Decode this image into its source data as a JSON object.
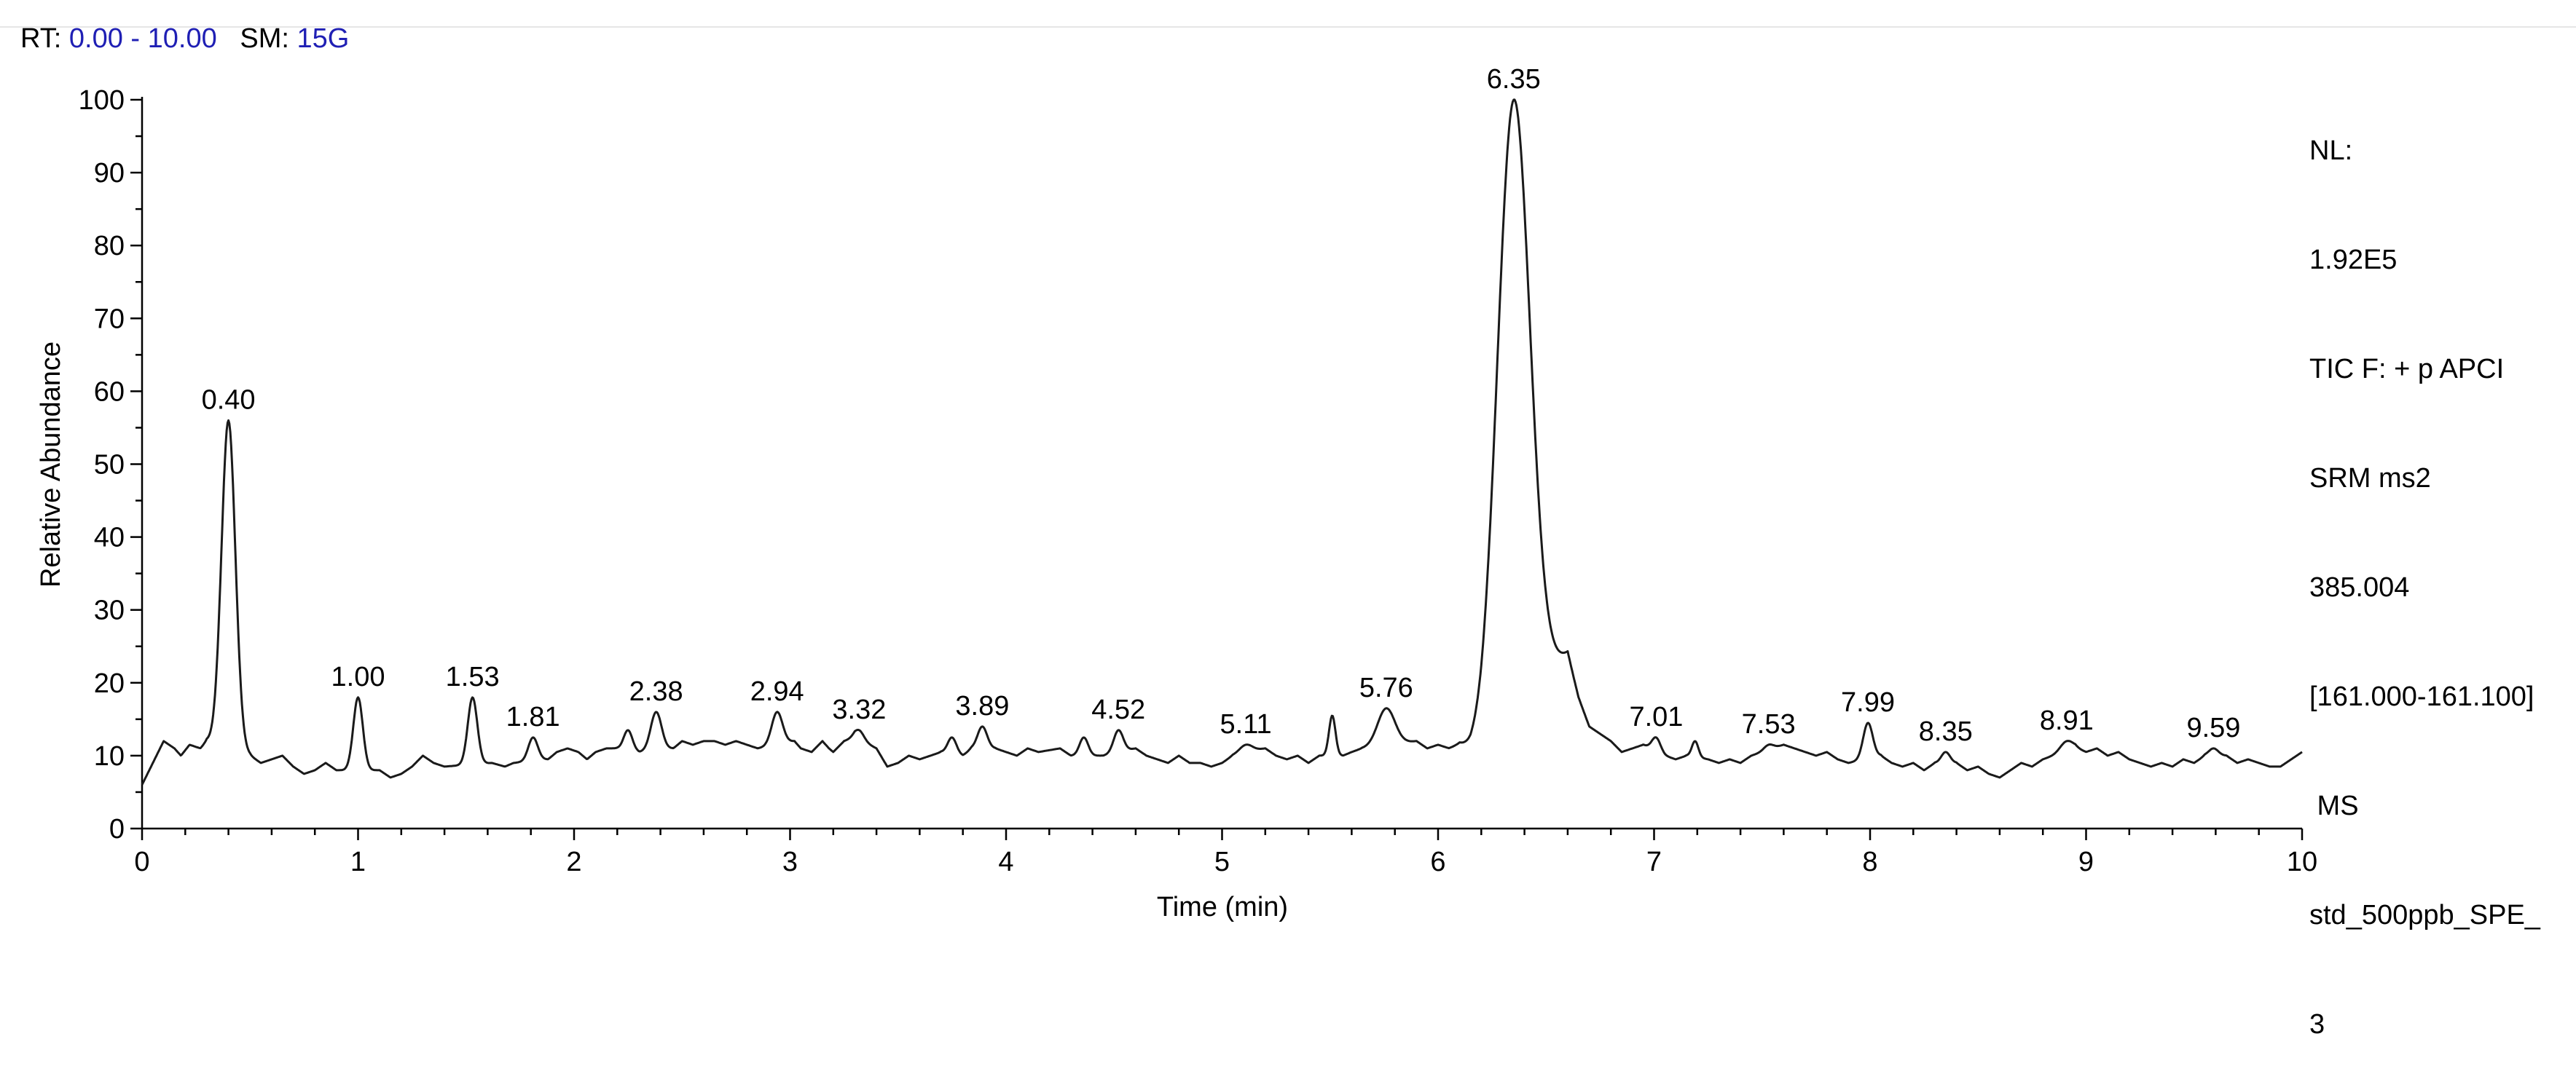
{
  "header": {
    "rt_label": "RT:",
    "rt_range": "0.00 - 10.00",
    "sm_label": "SM:",
    "sm_value": "15G"
  },
  "info_panel": {
    "lines": [
      "NL:",
      "1.92E5",
      "TIC F: + p APCI",
      "SRM ms2",
      "385.004",
      "[161.000-161.100]",
      " MS",
      "std_500ppb_SPE_",
      "3"
    ]
  },
  "colors": {
    "trace": "#1a1a1a",
    "header_value": "#1f1fb4",
    "background": "#ffffff"
  },
  "chart_data": {
    "type": "line",
    "xlabel": "Time (min)",
    "ylabel": "Relative Abundance",
    "xlim": [
      0,
      10
    ],
    "ylim": [
      0,
      100
    ],
    "xticks": [
      0,
      1,
      2,
      3,
      4,
      5,
      6,
      7,
      8,
      9,
      10
    ],
    "yticks": [
      0,
      10,
      20,
      30,
      40,
      50,
      60,
      70,
      80,
      90,
      100
    ],
    "grid": false,
    "baseline": [
      [
        0.0,
        6.0
      ],
      [
        0.05,
        9.0
      ],
      [
        0.1,
        12.0
      ],
      [
        0.15,
        11.0
      ],
      [
        0.18,
        10.0
      ],
      [
        0.22,
        11.5
      ],
      [
        0.27,
        11.0
      ],
      [
        0.3,
        12.0
      ],
      [
        0.5,
        10.0
      ],
      [
        0.55,
        9.0
      ],
      [
        0.6,
        9.5
      ],
      [
        0.65,
        10.0
      ],
      [
        0.7,
        8.5
      ],
      [
        0.75,
        7.5
      ],
      [
        0.8,
        8.0
      ],
      [
        0.85,
        9.0
      ],
      [
        0.9,
        8.0
      ],
      [
        1.1,
        8.0
      ],
      [
        1.15,
        7.0
      ],
      [
        1.2,
        7.5
      ],
      [
        1.25,
        8.5
      ],
      [
        1.3,
        10.0
      ],
      [
        1.35,
        9.0
      ],
      [
        1.4,
        8.5
      ],
      [
        1.62,
        9.0
      ],
      [
        1.68,
        8.5
      ],
      [
        1.72,
        9.0
      ],
      [
        1.88,
        9.5
      ],
      [
        1.92,
        10.5
      ],
      [
        1.97,
        11.0
      ],
      [
        2.02,
        10.5
      ],
      [
        2.06,
        9.5
      ],
      [
        2.1,
        10.5
      ],
      [
        2.15,
        11.0
      ],
      [
        2.2,
        11.0
      ],
      [
        2.3,
        10.5
      ],
      [
        2.46,
        11.0
      ],
      [
        2.5,
        12.0
      ],
      [
        2.55,
        11.5
      ],
      [
        2.6,
        12.0
      ],
      [
        2.65,
        12.0
      ],
      [
        2.7,
        11.5
      ],
      [
        2.75,
        12.0
      ],
      [
        2.8,
        11.5
      ],
      [
        2.85,
        11.0
      ],
      [
        3.02,
        12.0
      ],
      [
        3.05,
        11.0
      ],
      [
        3.1,
        10.5
      ],
      [
        3.15,
        12.0
      ],
      [
        3.18,
        11.0
      ],
      [
        3.2,
        10.5
      ],
      [
        3.25,
        12.0
      ],
      [
        3.3,
        12.5
      ],
      [
        3.4,
        11.0
      ],
      [
        3.45,
        8.5
      ],
      [
        3.5,
        9.0
      ],
      [
        3.55,
        10.0
      ],
      [
        3.6,
        9.5
      ],
      [
        3.65,
        10.0
      ],
      [
        3.7,
        10.5
      ],
      [
        3.8,
        10.0
      ],
      [
        3.84,
        11.0
      ],
      [
        3.95,
        11.0
      ],
      [
        4.0,
        10.5
      ],
      [
        4.05,
        10.0
      ],
      [
        4.1,
        11.0
      ],
      [
        4.15,
        10.5
      ],
      [
        4.25,
        11.0
      ],
      [
        4.3,
        10.0
      ],
      [
        4.4,
        10.0
      ],
      [
        4.45,
        10.0
      ],
      [
        4.6,
        11.0
      ],
      [
        4.65,
        10.0
      ],
      [
        4.7,
        9.5
      ],
      [
        4.75,
        9.0
      ],
      [
        4.8,
        10.0
      ],
      [
        4.85,
        9.0
      ],
      [
        4.9,
        9.0
      ],
      [
        4.95,
        8.5
      ],
      [
        5.0,
        9.0
      ],
      [
        5.05,
        10.0
      ],
      [
        5.2,
        11.0
      ],
      [
        5.25,
        10.0
      ],
      [
        5.3,
        9.5
      ],
      [
        5.35,
        10.0
      ],
      [
        5.4,
        9.0
      ],
      [
        5.45,
        10.0
      ],
      [
        5.56,
        10.0
      ],
      [
        5.6,
        10.5
      ],
      [
        5.65,
        11.0
      ],
      [
        5.9,
        12.0
      ],
      [
        5.95,
        11.0
      ],
      [
        6.0,
        11.5
      ],
      [
        6.05,
        11.0
      ],
      [
        6.1,
        11.5
      ],
      [
        6.15,
        10.5
      ],
      [
        6.2,
        11.0
      ],
      [
        6.6,
        24.0
      ],
      [
        6.65,
        18.0
      ],
      [
        6.7,
        14.0
      ],
      [
        6.75,
        13.0
      ],
      [
        6.8,
        12.0
      ],
      [
        6.85,
        10.5
      ],
      [
        6.9,
        11.0
      ],
      [
        6.95,
        11.5
      ],
      [
        7.05,
        10.0
      ],
      [
        7.1,
        9.5
      ],
      [
        7.15,
        10.0
      ],
      [
        7.25,
        9.5
      ],
      [
        7.3,
        9.0
      ],
      [
        7.35,
        9.5
      ],
      [
        7.4,
        9.0
      ],
      [
        7.45,
        10.0
      ],
      [
        7.6,
        11.5
      ],
      [
        7.65,
        11.0
      ],
      [
        7.7,
        10.5
      ],
      [
        7.75,
        10.0
      ],
      [
        7.8,
        10.5
      ],
      [
        7.85,
        9.5
      ],
      [
        7.9,
        9.0
      ],
      [
        8.05,
        10.0
      ],
      [
        8.1,
        9.0
      ],
      [
        8.15,
        8.5
      ],
      [
        8.2,
        9.0
      ],
      [
        8.25,
        8.0
      ],
      [
        8.3,
        9.0
      ],
      [
        8.4,
        9.0
      ],
      [
        8.45,
        8.0
      ],
      [
        8.5,
        8.5
      ],
      [
        8.55,
        7.5
      ],
      [
        8.6,
        7.0
      ],
      [
        8.65,
        8.0
      ],
      [
        8.7,
        9.0
      ],
      [
        8.75,
        8.5
      ],
      [
        8.8,
        9.5
      ],
      [
        8.85,
        10.0
      ],
      [
        8.95,
        11.0
      ],
      [
        9.0,
        10.5
      ],
      [
        9.05,
        11.0
      ],
      [
        9.1,
        10.0
      ],
      [
        9.15,
        10.5
      ],
      [
        9.2,
        9.5
      ],
      [
        9.25,
        9.0
      ],
      [
        9.3,
        8.5
      ],
      [
        9.35,
        9.0
      ],
      [
        9.4,
        8.5
      ],
      [
        9.45,
        9.5
      ],
      [
        9.5,
        9.0
      ],
      [
        9.55,
        10.0
      ],
      [
        9.65,
        10.0
      ],
      [
        9.7,
        9.0
      ],
      [
        9.75,
        9.5
      ],
      [
        9.8,
        9.0
      ],
      [
        9.85,
        8.5
      ],
      [
        9.9,
        8.5
      ],
      [
        9.95,
        9.5
      ],
      [
        10.0,
        10.5
      ]
    ],
    "peaks": [
      {
        "rt": 0.4,
        "label": "0.40",
        "height": 56,
        "width": 0.032,
        "show_label": true
      },
      {
        "rt": 1.0,
        "label": "1.00",
        "height": 18,
        "width": 0.022,
        "show_label": true
      },
      {
        "rt": 1.53,
        "label": "1.53",
        "height": 18,
        "width": 0.022,
        "show_label": true
      },
      {
        "rt": 1.81,
        "label": "1.81",
        "height": 12.5,
        "width": 0.022,
        "show_label": true
      },
      {
        "rt": 2.25,
        "label": "",
        "height": 13.5,
        "width": 0.02,
        "show_label": false
      },
      {
        "rt": 2.38,
        "label": "2.38",
        "height": 16,
        "width": 0.025,
        "show_label": true
      },
      {
        "rt": 2.94,
        "label": "2.94",
        "height": 16,
        "width": 0.025,
        "show_label": true
      },
      {
        "rt": 3.32,
        "label": "3.32",
        "height": 13.5,
        "width": 0.022,
        "show_label": true
      },
      {
        "rt": 3.75,
        "label": "",
        "height": 12.5,
        "width": 0.02,
        "show_label": false
      },
      {
        "rt": 3.89,
        "label": "3.89",
        "height": 14,
        "width": 0.022,
        "show_label": true
      },
      {
        "rt": 4.36,
        "label": "",
        "height": 12.5,
        "width": 0.02,
        "show_label": false
      },
      {
        "rt": 4.52,
        "label": "4.52",
        "height": 13.5,
        "width": 0.022,
        "show_label": true
      },
      {
        "rt": 5.11,
        "label": "5.11",
        "height": 11.5,
        "width": 0.03,
        "show_label": true
      },
      {
        "rt": 5.51,
        "label": "",
        "height": 15.5,
        "width": 0.015,
        "show_label": false
      },
      {
        "rt": 5.76,
        "label": "5.76",
        "height": 16.5,
        "width": 0.04,
        "show_label": true
      },
      {
        "rt": 6.35,
        "label": "6.35",
        "height": 100,
        "width": 0.075,
        "show_label": true
      },
      {
        "rt": 7.01,
        "label": "7.01",
        "height": 12.5,
        "width": 0.02,
        "show_label": true
      },
      {
        "rt": 7.19,
        "label": "",
        "height": 12,
        "width": 0.015,
        "show_label": false
      },
      {
        "rt": 7.53,
        "label": "7.53",
        "height": 11.5,
        "width": 0.022,
        "show_label": true
      },
      {
        "rt": 7.99,
        "label": "7.99",
        "height": 14.5,
        "width": 0.022,
        "show_label": true
      },
      {
        "rt": 8.35,
        "label": "8.35",
        "height": 10.5,
        "width": 0.02,
        "show_label": true
      },
      {
        "rt": 8.91,
        "label": "8.91",
        "height": 12,
        "width": 0.03,
        "show_label": true
      },
      {
        "rt": 9.59,
        "label": "9.59",
        "height": 11,
        "width": 0.022,
        "show_label": true
      }
    ]
  }
}
